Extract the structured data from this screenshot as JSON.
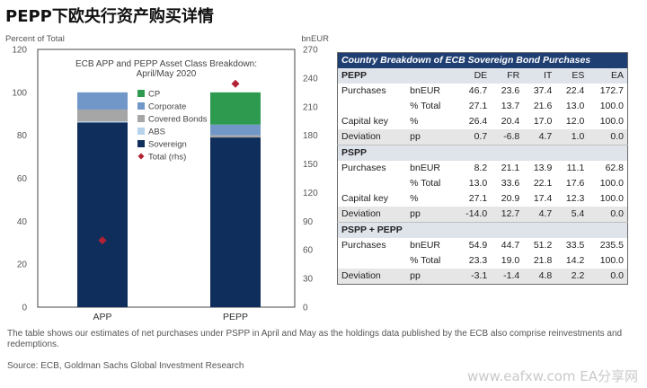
{
  "page": {
    "title": "PEPP下欧央行资产购买详情",
    "footnote": "The table shows our estimates of net purchases under PSPP in April and May as the holdings data published by the ECB also comprise reinvestments and redemptions.",
    "source": "Source: ECB, Goldman Sachs Global Investment Research",
    "watermark": "www.eafxw.com  EA分享网"
  },
  "chart_data": {
    "type": "bar",
    "title": "ECB APP and PEPP Asset Class Breakdown:",
    "subtitle": "April/May 2020",
    "ylabel_left": "Percent of Total",
    "ylabel_right": "bnEUR",
    "ylim_left": [
      0,
      120
    ],
    "ylim_right": [
      0,
      270
    ],
    "left_ticks": [
      0,
      20,
      40,
      60,
      80,
      100,
      120
    ],
    "right_ticks": [
      0,
      30,
      60,
      90,
      120,
      150,
      180,
      210,
      240,
      270
    ],
    "categories": [
      "APP",
      "PEPP"
    ],
    "series": [
      {
        "name": "Sovereign",
        "color": "#0f2e5c",
        "values": [
          86,
          79
        ]
      },
      {
        "name": "ABS",
        "color": "#b7d3ec",
        "values": [
          0.5,
          0
        ]
      },
      {
        "name": "Covered Bonds",
        "color": "#a6a6a6",
        "values": [
          5.5,
          1
        ]
      },
      {
        "name": "Corporate",
        "color": "#7197c9",
        "values": [
          8,
          5
        ]
      },
      {
        "name": "CP",
        "color": "#2e9a4f",
        "values": [
          0,
          15
        ]
      }
    ],
    "total_rhs": {
      "name": "Total (rhs)",
      "color": "#b22234",
      "values": [
        70,
        234
      ]
    },
    "legend_order": [
      "CP",
      "Corporate",
      "Covered Bonds",
      "ABS",
      "Sovereign",
      "Total (rhs)"
    ],
    "legend_position": "top-right"
  },
  "table": {
    "title": "Country Breakdown of ECB Sovereign Bond Purchases",
    "columns": [
      "DE",
      "FR",
      "IT",
      "ES",
      "EA"
    ],
    "sections": [
      {
        "name": "PEPP",
        "rows": [
          {
            "label": "Purchases",
            "unit": "bnEUR",
            "values": [
              "46.7",
              "23.6",
              "37.4",
              "22.4",
              "172.7"
            ]
          },
          {
            "label": "",
            "unit": "% Total",
            "values": [
              "27.1",
              "13.7",
              "21.6",
              "13.0",
              "100.0"
            ]
          },
          {
            "label": "Capital key",
            "unit": "%",
            "values": [
              "26.4",
              "20.4",
              "17.0",
              "12.0",
              "100.0"
            ]
          },
          {
            "label": "Deviation",
            "unit": "pp",
            "values": [
              "0.7",
              "-6.8",
              "4.7",
              "1.0",
              "0.0"
            ],
            "dev": true
          }
        ]
      },
      {
        "name": "PSPP",
        "rows": [
          {
            "label": "Purchases",
            "unit": "bnEUR",
            "values": [
              "8.2",
              "21.1",
              "13.9",
              "11.1",
              "62.8"
            ]
          },
          {
            "label": "",
            "unit": "% Total",
            "values": [
              "13.0",
              "33.6",
              "22.1",
              "17.6",
              "100.0"
            ]
          },
          {
            "label": "Capital key",
            "unit": "%",
            "values": [
              "27.1",
              "20.9",
              "17.4",
              "12.3",
              "100.0"
            ]
          },
          {
            "label": "Deviation",
            "unit": "pp",
            "values": [
              "-14.0",
              "12.7",
              "4.7",
              "5.4",
              "0.0"
            ],
            "dev": true
          }
        ]
      },
      {
        "name": "PSPP + PEPP",
        "rows": [
          {
            "label": "Purchases",
            "unit": "bnEUR",
            "values": [
              "54.9",
              "44.7",
              "51.2",
              "33.5",
              "235.5"
            ]
          },
          {
            "label": "",
            "unit": "% Total",
            "values": [
              "23.3",
              "19.0",
              "21.8",
              "14.2",
              "100.0"
            ]
          },
          {
            "label": "Deviation",
            "unit": "pp",
            "values": [
              "-3.1",
              "-1.4",
              "4.8",
              "2.2",
              "0.0"
            ],
            "dev": true
          }
        ]
      }
    ]
  }
}
